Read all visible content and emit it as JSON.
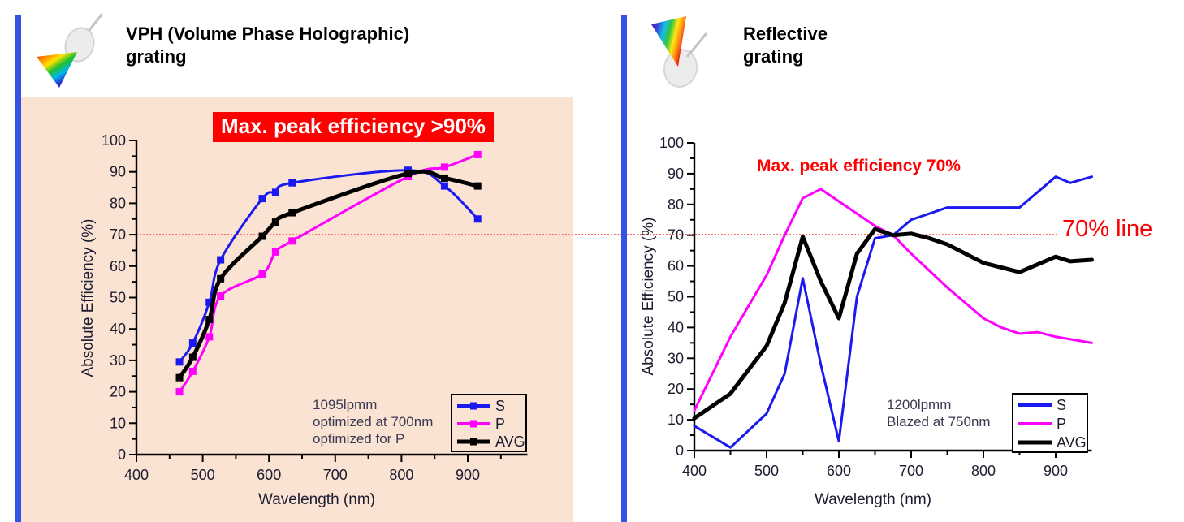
{
  "panels": {
    "left": {
      "title": "VPH (Volume Phase Holographic)\ngrating",
      "banner": "Max. peak efficiency >90%",
      "annotation": "1095lpmm\noptimized at 700nm\noptimized for P"
    },
    "right": {
      "title": "Reflective\ngrating",
      "callout": "Max. peak efficiency 70%",
      "annotation": "1200lpmm\nBlazed at 750nm"
    }
  },
  "seventy_line": {
    "label": "70% line",
    "value_percent": 70
  },
  "colors": {
    "accent_bar": "#3453e5",
    "left_panel_bg": "#fae3d2",
    "highlight_red": "#fe0000",
    "dotted_line": "#ff6b6b",
    "series_s": "#1a1af0",
    "series_p": "#ff00ff",
    "series_avg": "#000000"
  },
  "chart_data": [
    {
      "type": "line",
      "name": "vph-grating-efficiency",
      "title": "VPH (Volume Phase Holographic) grating",
      "xlabel": "Wavelength  (nm)",
      "ylabel": "Absolute  Efficiency  (%)",
      "xlim": [
        400,
        990
      ],
      "ylim": [
        0,
        100
      ],
      "x_ticks": [
        400,
        500,
        600,
        700,
        800,
        900
      ],
      "y_tick_step": 10,
      "grid": false,
      "smooth": true,
      "markers": true,
      "legend": [
        "S",
        "P",
        "AVG"
      ],
      "legend_position": "lower right",
      "series": [
        {
          "name": "P",
          "color": "#ff00ff",
          "width": 3,
          "points": [
            [
              465,
              20
            ],
            [
              485,
              26.5
            ],
            [
              510,
              37.5
            ],
            [
              527,
              50.5
            ],
            [
              590,
              57.5
            ],
            [
              610,
              64.5
            ],
            [
              635,
              68
            ],
            [
              810,
              88.5
            ],
            [
              865,
              91.5
            ],
            [
              915,
              95.5
            ]
          ]
        },
        {
          "name": "S",
          "color": "#1a1af0",
          "width": 3,
          "points": [
            [
              465,
              29.5
            ],
            [
              485,
              35.5
            ],
            [
              510,
              48.5
            ],
            [
              527,
              62
            ],
            [
              590,
              81.5
            ],
            [
              610,
              83.5
            ],
            [
              635,
              86.5
            ],
            [
              810,
              90.5
            ],
            [
              865,
              85.5
            ],
            [
              915,
              75
            ]
          ]
        },
        {
          "name": "AVG",
          "color": "#000000",
          "width": 5,
          "points": [
            [
              465,
              24.5
            ],
            [
              485,
              31
            ],
            [
              510,
              43
            ],
            [
              527,
              56
            ],
            [
              590,
              69.5
            ],
            [
              610,
              74
            ],
            [
              635,
              77
            ],
            [
              810,
              89.5
            ],
            [
              865,
              88
            ],
            [
              915,
              85.5
            ]
          ]
        }
      ]
    },
    {
      "type": "line",
      "name": "reflective-grating-efficiency",
      "title": "Reflective grating",
      "xlabel": "Wavelength (nm)",
      "ylabel": "Absolute Efficiency (%)",
      "xlim": [
        400,
        950
      ],
      "ylim": [
        0,
        100
      ],
      "x_ticks": [
        400,
        500,
        600,
        700,
        800,
        900
      ],
      "y_tick_step": 10,
      "grid": false,
      "smooth": false,
      "markers": false,
      "legend": [
        "S",
        "P",
        "AVG"
      ],
      "legend_position": "lower right",
      "series": [
        {
          "name": "P",
          "color": "#ff00ff",
          "width": 3,
          "points": [
            [
              400,
              13
            ],
            [
              450,
              37
            ],
            [
              500,
              57
            ],
            [
              525,
              70
            ],
            [
              550,
              82
            ],
            [
              575,
              85
            ],
            [
              600,
              81
            ],
            [
              625,
              77
            ],
            [
              650,
              73
            ],
            [
              675,
              70
            ],
            [
              700,
              64
            ],
            [
              750,
              53
            ],
            [
              800,
              43
            ],
            [
              825,
              40
            ],
            [
              850,
              38
            ],
            [
              875,
              38.5
            ],
            [
              900,
              37
            ],
            [
              950,
              35
            ]
          ]
        },
        {
          "name": "S",
          "color": "#1a1af0",
          "width": 3,
          "points": [
            [
              400,
              8
            ],
            [
              450,
              1
            ],
            [
              500,
              12
            ],
            [
              525,
              25
            ],
            [
              550,
              56
            ],
            [
              575,
              28
            ],
            [
              600,
              3
            ],
            [
              625,
              50
            ],
            [
              650,
              69
            ],
            [
              675,
              70
            ],
            [
              700,
              75
            ],
            [
              725,
              77
            ],
            [
              750,
              79
            ],
            [
              800,
              79
            ],
            [
              850,
              79
            ],
            [
              900,
              89
            ],
            [
              920,
              87
            ],
            [
              950,
              89
            ]
          ]
        },
        {
          "name": "AVG",
          "color": "#000000",
          "width": 5,
          "points": [
            [
              400,
              10.5
            ],
            [
              450,
              18.5
            ],
            [
              500,
              34
            ],
            [
              525,
              48
            ],
            [
              550,
              69.5
            ],
            [
              575,
              55
            ],
            [
              600,
              43
            ],
            [
              625,
              64
            ],
            [
              650,
              72
            ],
            [
              675,
              70
            ],
            [
              700,
              70.5
            ],
            [
              725,
              69
            ],
            [
              750,
              67
            ],
            [
              800,
              61
            ],
            [
              850,
              58
            ],
            [
              900,
              63
            ],
            [
              920,
              61.5
            ],
            [
              950,
              62
            ]
          ]
        }
      ]
    }
  ]
}
